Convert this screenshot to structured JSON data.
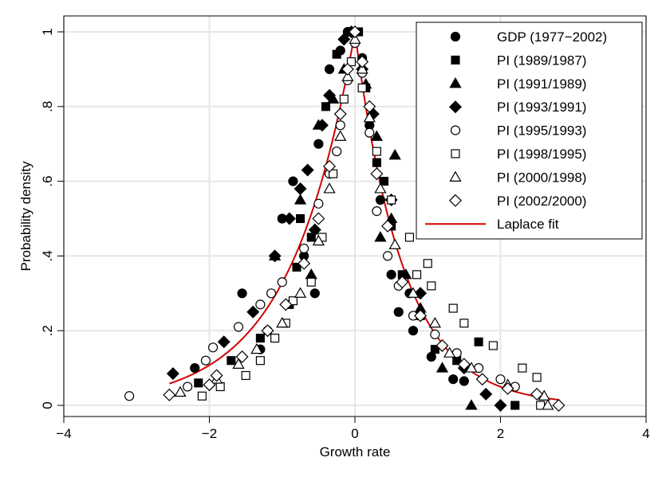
{
  "chart_data": {
    "type": "scatter",
    "title": "",
    "xlabel": "Growth rate",
    "ylabel": "Probability density",
    "xlim": [
      -4,
      4
    ],
    "ylim": [
      0,
      1
    ],
    "x_ticks": [
      {
        "value": -4,
        "label": "−4"
      },
      {
        "value": -2,
        "label": "−2"
      },
      {
        "value": 0,
        "label": "0"
      },
      {
        "value": 2,
        "label": "2"
      },
      {
        "value": 4,
        "label": "4"
      }
    ],
    "y_ticks": [
      {
        "value": 0,
        "label": "0"
      },
      {
        "value": 0.2,
        "label": ".2"
      },
      {
        "value": 0.4,
        "label": ".4"
      },
      {
        "value": 0.6,
        "label": ".6"
      },
      {
        "value": 0.8,
        "label": ".8"
      },
      {
        "value": 1,
        "label": "1"
      }
    ],
    "grid": true,
    "legend_position": "top-right",
    "colors": {
      "markers": "#000000",
      "fit_line": "#d40000"
    },
    "series": [
      {
        "name": "GDP (1977−2002)",
        "marker": "circle-filled",
        "points": [
          [
            -2.2,
            0.1
          ],
          [
            -1.55,
            0.3
          ],
          [
            -1.2,
            0.2
          ],
          [
            -1.0,
            0.5
          ],
          [
            -0.85,
            0.6
          ],
          [
            -0.7,
            0.4
          ],
          [
            -0.5,
            0.7
          ],
          [
            -0.35,
            0.9
          ],
          [
            -0.2,
            0.95
          ],
          [
            -0.1,
            1.0
          ],
          [
            0.1,
            0.93
          ],
          [
            0.2,
            0.75
          ],
          [
            0.35,
            0.55
          ],
          [
            0.5,
            0.35
          ],
          [
            0.6,
            0.25
          ],
          [
            0.8,
            0.2
          ],
          [
            1.05,
            0.13
          ],
          [
            1.35,
            0.07
          ],
          [
            1.5,
            0.065
          ],
          [
            -0.55,
            0.3
          ],
          [
            -1.3,
            0.15
          ],
          [
            0.75,
            0.3
          ]
        ]
      },
      {
        "name": "PI (1989/1987)",
        "marker": "square-filled",
        "points": [
          [
            -2.15,
            0.06
          ],
          [
            -1.7,
            0.12
          ],
          [
            -1.3,
            0.18
          ],
          [
            -0.9,
            0.27
          ],
          [
            -0.8,
            0.37
          ],
          [
            -0.6,
            0.45
          ],
          [
            -0.4,
            0.8
          ],
          [
            -0.25,
            0.94
          ],
          [
            -0.05,
            1.0
          ],
          [
            0.05,
            1.0
          ],
          [
            0.15,
            0.85
          ],
          [
            0.3,
            0.65
          ],
          [
            0.5,
            0.48
          ],
          [
            0.65,
            0.35
          ],
          [
            0.9,
            0.24
          ],
          [
            1.1,
            0.15
          ],
          [
            1.4,
            0.12
          ],
          [
            1.7,
            0.17
          ],
          [
            2.2,
            0.0
          ],
          [
            -0.75,
            0.5
          ],
          [
            0.4,
            0.6
          ]
        ]
      },
      {
        "name": "PI (1991/1989)",
        "marker": "triangle-filled",
        "points": [
          [
            -1.1,
            0.4
          ],
          [
            -0.75,
            0.55
          ],
          [
            -0.5,
            0.75
          ],
          [
            -0.3,
            0.82
          ],
          [
            -0.15,
            0.9
          ],
          [
            0.0,
            1.0
          ],
          [
            0.15,
            0.86
          ],
          [
            0.3,
            0.72
          ],
          [
            0.55,
            0.67
          ],
          [
            0.5,
            0.5
          ],
          [
            0.7,
            0.35
          ],
          [
            0.9,
            0.26
          ],
          [
            1.2,
            0.1
          ],
          [
            1.6,
            0.0
          ],
          [
            -0.6,
            0.35
          ],
          [
            0.35,
            0.45
          ]
        ]
      },
      {
        "name": "PI (1993/1991)",
        "marker": "diamond-filled",
        "points": [
          [
            -2.5,
            0.085
          ],
          [
            -1.8,
            0.17
          ],
          [
            -1.4,
            0.25
          ],
          [
            -1.1,
            0.4
          ],
          [
            -0.9,
            0.5
          ],
          [
            -0.75,
            0.58
          ],
          [
            -0.65,
            0.63
          ],
          [
            -0.45,
            0.75
          ],
          [
            -0.35,
            0.83
          ],
          [
            -0.15,
            0.98
          ],
          [
            -0.05,
            1.0
          ],
          [
            0.1,
            0.9
          ],
          [
            0.25,
            0.78
          ],
          [
            0.5,
            0.55
          ],
          [
            0.9,
            0.3
          ],
          [
            1.5,
            0.1
          ],
          [
            1.8,
            0.03
          ],
          [
            2.0,
            0.0
          ],
          [
            -0.55,
            0.47
          ]
        ]
      },
      {
        "name": "PI (1995/1993)",
        "marker": "circle-open",
        "points": [
          [
            -3.1,
            0.025
          ],
          [
            -2.3,
            0.05
          ],
          [
            -2.05,
            0.12
          ],
          [
            -1.95,
            0.155
          ],
          [
            -1.6,
            0.21
          ],
          [
            -1.3,
            0.27
          ],
          [
            -1.0,
            0.33
          ],
          [
            -0.7,
            0.42
          ],
          [
            -0.5,
            0.54
          ],
          [
            -0.35,
            0.62
          ],
          [
            -0.2,
            0.75
          ],
          [
            -0.1,
            0.87
          ],
          [
            0.0,
            0.97
          ],
          [
            0.1,
            0.89
          ],
          [
            0.2,
            0.73
          ],
          [
            0.3,
            0.52
          ],
          [
            0.45,
            0.4
          ],
          [
            0.6,
            0.32
          ],
          [
            0.8,
            0.24
          ],
          [
            1.1,
            0.19
          ],
          [
            1.4,
            0.14
          ],
          [
            1.7,
            0.1
          ],
          [
            2.0,
            0.07
          ],
          [
            2.2,
            0.05
          ],
          [
            -1.15,
            0.3
          ],
          [
            -0.25,
            0.68
          ]
        ]
      },
      {
        "name": "PI (1998/1995)",
        "marker": "square-open",
        "points": [
          [
            -2.1,
            0.025
          ],
          [
            -1.85,
            0.05
          ],
          [
            -1.5,
            0.08
          ],
          [
            -1.3,
            0.12
          ],
          [
            -1.1,
            0.18
          ],
          [
            -0.85,
            0.28
          ],
          [
            -0.6,
            0.33
          ],
          [
            -0.45,
            0.45
          ],
          [
            -0.3,
            0.62
          ],
          [
            -0.15,
            0.82
          ],
          [
            -0.05,
            0.92
          ],
          [
            0.1,
            0.85
          ],
          [
            0.3,
            0.68
          ],
          [
            0.5,
            0.55
          ],
          [
            0.75,
            0.45
          ],
          [
            1.0,
            0.38
          ],
          [
            1.05,
            0.32
          ],
          [
            1.35,
            0.26
          ],
          [
            1.5,
            0.22
          ],
          [
            1.9,
            0.16
          ],
          [
            2.3,
            0.1
          ],
          [
            2.5,
            0.075
          ],
          [
            2.55,
            0.0
          ],
          [
            -0.95,
            0.22
          ],
          [
            0.85,
            0.35
          ]
        ]
      },
      {
        "name": "PI (2000/1998)",
        "marker": "triangle-open",
        "points": [
          [
            -2.4,
            0.035
          ],
          [
            -1.9,
            0.07
          ],
          [
            -1.6,
            0.11
          ],
          [
            -1.35,
            0.15
          ],
          [
            -1.0,
            0.22
          ],
          [
            -0.75,
            0.3
          ],
          [
            -0.5,
            0.44
          ],
          [
            -0.35,
            0.58
          ],
          [
            -0.2,
            0.72
          ],
          [
            -0.1,
            0.88
          ],
          [
            0.0,
            0.98
          ],
          [
            0.1,
            0.9
          ],
          [
            0.2,
            0.77
          ],
          [
            0.35,
            0.58
          ],
          [
            0.55,
            0.43
          ],
          [
            0.8,
            0.3
          ],
          [
            1.1,
            0.22
          ],
          [
            1.3,
            0.14
          ],
          [
            1.6,
            0.1
          ],
          [
            2.1,
            0.055
          ],
          [
            2.6,
            0.025
          ],
          [
            2.65,
            0.0
          ]
        ]
      },
      {
        "name": "PI (2002/2000)",
        "marker": "diamond-open",
        "points": [
          [
            -2.55,
            0.028
          ],
          [
            -2.0,
            0.055
          ],
          [
            -1.9,
            0.08
          ],
          [
            -1.55,
            0.13
          ],
          [
            -1.2,
            0.2
          ],
          [
            -0.95,
            0.27
          ],
          [
            -0.7,
            0.38
          ],
          [
            -0.5,
            0.5
          ],
          [
            -0.35,
            0.64
          ],
          [
            -0.2,
            0.78
          ],
          [
            -0.1,
            0.9
          ],
          [
            0.0,
            1.0
          ],
          [
            0.1,
            0.92
          ],
          [
            0.2,
            0.8
          ],
          [
            0.3,
            0.62
          ],
          [
            0.45,
            0.48
          ],
          [
            0.65,
            0.33
          ],
          [
            0.9,
            0.24
          ],
          [
            1.2,
            0.16
          ],
          [
            1.5,
            0.11
          ],
          [
            1.75,
            0.07
          ],
          [
            2.1,
            0.045
          ],
          [
            2.5,
            0.03
          ],
          [
            2.8,
            0.0
          ]
        ]
      }
    ],
    "fit": {
      "name": "Laplace fit",
      "peak": 1.0,
      "decay_left": 1.115,
      "decay_right": 1.5,
      "x_range": [
        -2.55,
        2.8
      ]
    }
  }
}
